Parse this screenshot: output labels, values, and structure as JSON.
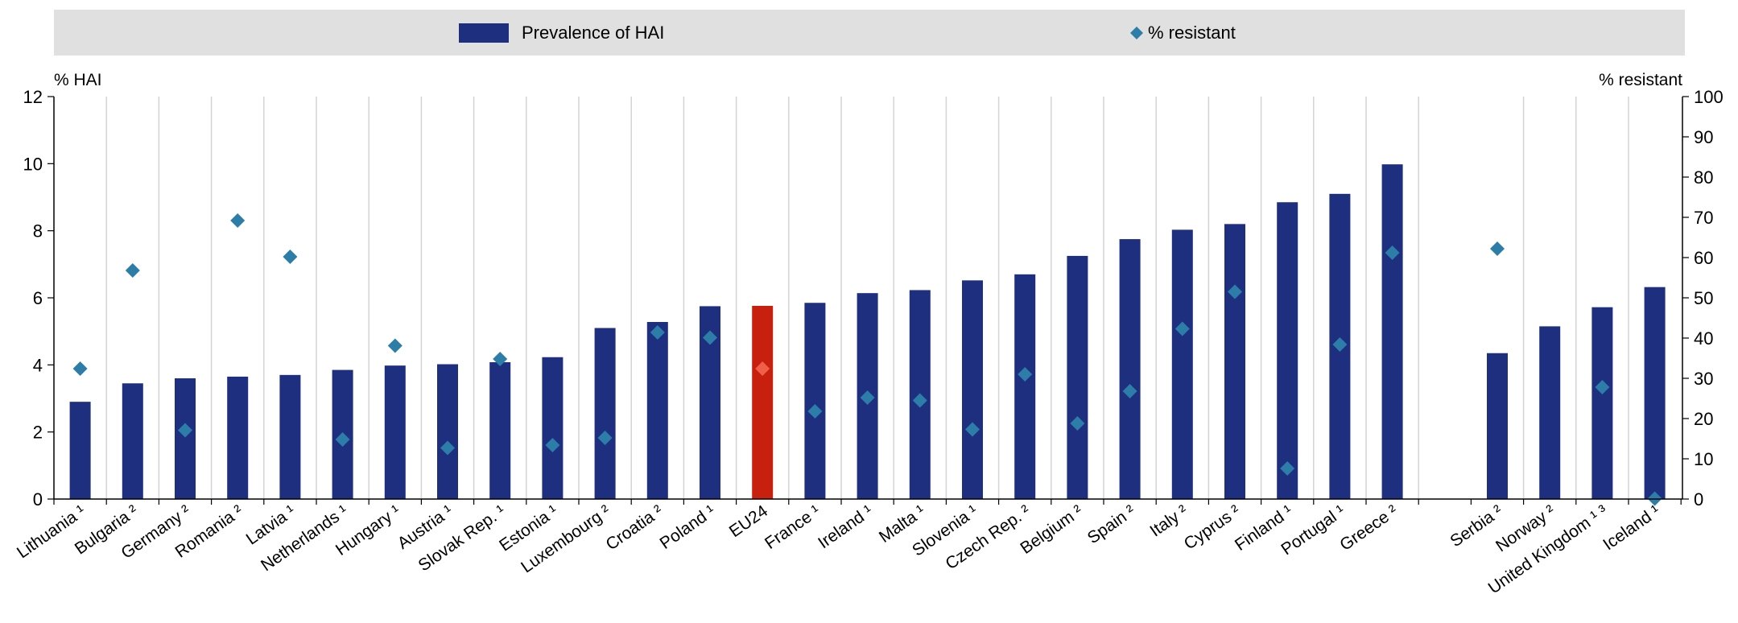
{
  "chart_data": {
    "type": "bar",
    "legend": {
      "position": "top",
      "entries": [
        {
          "name": "Prevalence of HAI",
          "marker": "bar"
        },
        {
          "name": "% resistant",
          "marker": "diamond"
        }
      ]
    },
    "ylabel": "% HAI",
    "y2label": "% resistant",
    "ylim": [
      0,
      12
    ],
    "y2lim": [
      0,
      100
    ],
    "yticks": [
      "0",
      "2",
      "4",
      "6",
      "8",
      "10",
      "12"
    ],
    "y2ticks": [
      "0",
      "10",
      "20",
      "30",
      "40",
      "50",
      "60",
      "70",
      "80",
      "90",
      "100"
    ],
    "grid": "vertical",
    "categories": [
      "Lithuania ¹",
      "Bulgaria ²",
      "Germany ²",
      "Romania ²",
      "Latvia ¹",
      "Netherlands ¹",
      "Hungary ¹",
      "Austria ¹",
      "Slovak Rep. ¹",
      "Estonia ¹",
      "Luxembourg ²",
      "Croatia ²",
      "Poland ¹",
      "EU24",
      "France ¹",
      "Ireland ¹",
      "Malta ¹",
      "Slovenia ¹",
      "Czech Rep. ²",
      "Belgium ²",
      "Spain ²",
      "Italy ²",
      "Cyprus ²",
      "Finland ¹",
      "Portugal ¹",
      "Greece ²",
      "Serbia ²",
      "Norway ²",
      "United Kingdom ¹ ³",
      "Iceland ¹"
    ],
    "series": [
      {
        "name": "Prevalence of HAI",
        "axis": "left",
        "values": [
          2.9,
          3.45,
          3.6,
          3.65,
          3.7,
          3.85,
          3.98,
          4.02,
          4.08,
          4.23,
          5.1,
          5.28,
          5.75,
          5.76,
          5.85,
          6.14,
          6.23,
          6.52,
          6.7,
          7.25,
          7.75,
          8.03,
          8.2,
          8.85,
          9.1,
          9.98,
          4.35,
          5.15,
          5.72,
          6.32
        ]
      },
      {
        "name": "% resistant",
        "axis": "right",
        "values": [
          32.4,
          56.8,
          17.1,
          69.2,
          60.2,
          14.8,
          38.1,
          12.7,
          34.8,
          13.4,
          15.2,
          41.4,
          40.1,
          32.4,
          21.8,
          25.2,
          24.5,
          17.3,
          31,
          18.8,
          26.8,
          42.3,
          51.5,
          7.6,
          38.4,
          61.2,
          62.2,
          null,
          27.8,
          0.1
        ]
      }
    ],
    "colors": {
      "bar": "#1f2f80",
      "bar_highlight": "#c8200e",
      "diamond": "#2c7da8",
      "diamond_highlight": "#ef5f4a",
      "legend_band": "#e0e0e0",
      "grid": "#d4d4d4"
    },
    "highlight_category": "EU24"
  }
}
